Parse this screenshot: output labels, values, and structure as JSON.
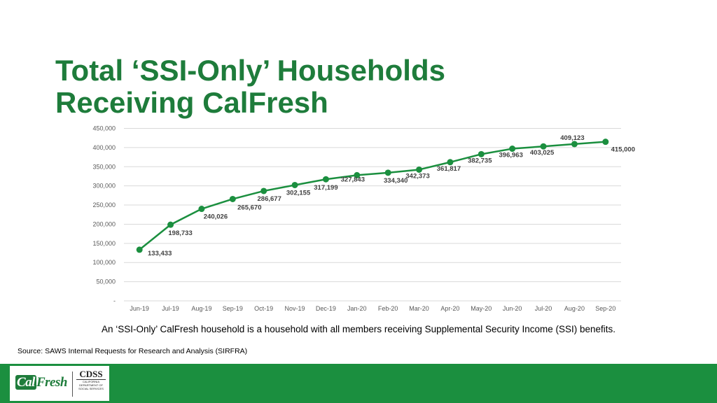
{
  "title": {
    "line1": "Total ‘SSI-Only’ Households",
    "line2": "Receiving CalFresh"
  },
  "chart_data": {
    "type": "line",
    "title": "Total ‘SSI-Only’ Households Receiving CalFresh",
    "categories": [
      "Jun-19",
      "Jul-19",
      "Aug-19",
      "Sep-19",
      "Oct-19",
      "Nov-19",
      "Dec-19",
      "Jan-20",
      "Feb-20",
      "Mar-20",
      "Apr-20",
      "May-20",
      "Jun-20",
      "Jul-20",
      "Aug-20",
      "Sep-20"
    ],
    "series": [
      {
        "name": "SSI-Only Households",
        "values": [
          133433,
          198733,
          240026,
          265670,
          286677,
          302155,
          317199,
          327843,
          334340,
          342373,
          361817,
          382735,
          396963,
          403025,
          409123,
          415000
        ],
        "labels": [
          "133,433",
          "198,733",
          "240,026",
          "265,670",
          "286,677",
          "302,155",
          "317,199",
          "327,843",
          "334,340",
          "342,373",
          "361,817",
          "382,735",
          "396,963",
          "403,025",
          "409,123",
          "415,000"
        ]
      }
    ],
    "y_ticks": [
      "-",
      "50,000",
      "100,000",
      "150,000",
      "200,000",
      "250,000",
      "300,000",
      "350,000",
      "400,000",
      "450,000"
    ],
    "ylim": [
      0,
      450000
    ],
    "xlabel": "",
    "ylabel": "",
    "grid": true,
    "line_color": "#1b8f3f",
    "grid_color": "#d9d9d9"
  },
  "note": "An ‘SSI-Only’ CalFresh household is a household with all members receiving Supplemental Security Income (SSI) benefits.",
  "source": "Source: SAWS Internal Requests for Research and Analysis (SIRFRA)",
  "footer": {
    "calfresh_cal": "Cal",
    "calfresh_fresh": "Fresh",
    "cdss_big": "CDSS",
    "cdss_line1": "CALIFORNIA",
    "cdss_line2": "DEPARTMENT OF",
    "cdss_line3": "SOCIAL SERVICES",
    "bar_color": "#1b8f3f"
  }
}
